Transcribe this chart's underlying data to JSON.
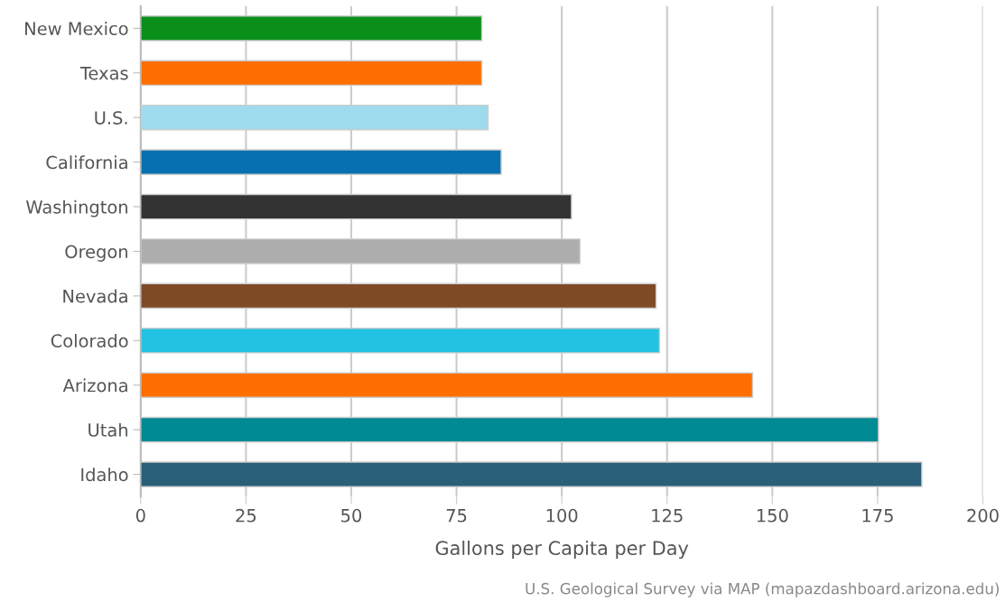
{
  "chart_data": {
    "type": "bar",
    "orientation": "horizontal",
    "categories": [
      "New Mexico",
      "Texas",
      "U.S.",
      "California",
      "Washington",
      "Oregon",
      "Nevada",
      "Colorado",
      "Arizona",
      "Utah",
      "Idaho"
    ],
    "values": [
      81,
      81,
      82.5,
      85.6,
      102.3,
      104.3,
      122.4,
      123.2,
      145.3,
      175.2,
      185.5
    ],
    "colors": [
      "#0a8f1a",
      "#ff6e00",
      "#9edbec",
      "#0770b0",
      "#333333",
      "#adadad",
      "#7f4b27",
      "#22c3e2",
      "#ff6e00",
      "#008a94",
      "#2a5f79"
    ],
    "xlabel": "Gallons per Capita per Day",
    "xlim": [
      0,
      200
    ],
    "xticks": [
      0,
      25,
      50,
      75,
      100,
      125,
      150,
      175,
      200
    ],
    "grid": "x",
    "annotations": [
      "U.S. Geological Survey via MAP (mapazdashboard.arizona.edu)"
    ]
  }
}
